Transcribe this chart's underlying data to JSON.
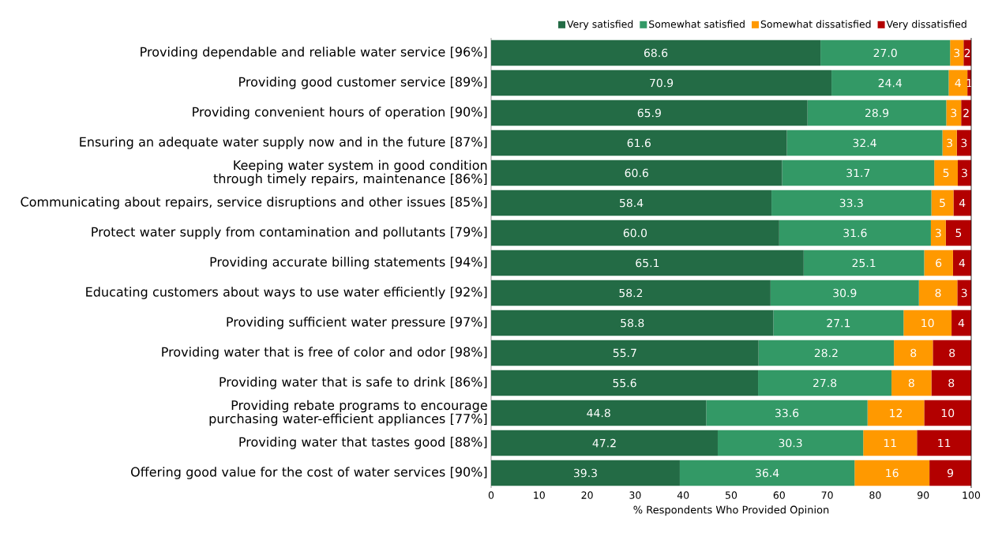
{
  "chart_data": {
    "type": "bar",
    "orientation": "horizontal",
    "stacked": true,
    "legend": "top right",
    "xlabel": "% Respondents Who Provided Opinion",
    "categories": [
      "Providing dependable and reliable water service [96%]",
      "Providing good customer service [89%]",
      "Providing convenient hours of operation [90%]",
      "Ensuring an adequate water supply now and in the future [87%]",
      "Keeping water system in good condition through timely repairs, maintenance [86%]",
      "Communicating about repairs, service disruptions and other issues [85%]",
      "Protect water supply from contamination and pollutants [79%]",
      "Providing accurate billing statements [94%]",
      "Educating customers about ways to use water efficiently [92%]",
      "Providing sufficient water pressure [97%]",
      "Providing water that is free of color and odor [98%]",
      "Providing water that is safe to drink [86%]",
      "Providing rebate programs to encourage purchasing water-efficient appliances [77%]",
      "Providing water that tastes good [88%]",
      "Offering good value for the cost of water services [90%]"
    ],
    "series": [
      {
        "name": "Very satisfied",
        "color": "#236b45",
        "values": [
          68.6,
          70.9,
          65.9,
          61.6,
          60.6,
          58.4,
          60.0,
          65.1,
          58.2,
          58.8,
          55.7,
          55.6,
          44.8,
          47.2,
          39.3
        ],
        "value_labels": [
          "68.6",
          "70.9",
          "65.9",
          "61.6",
          "60.6",
          "58.4",
          "60.0",
          "65.1",
          "58.2",
          "58.8",
          "55.7",
          "55.6",
          "44.8",
          "47.2",
          "39.3"
        ]
      },
      {
        "name": "Somewhat satisfied",
        "color": "#339966",
        "values": [
          27.0,
          24.4,
          28.9,
          32.4,
          31.7,
          33.3,
          31.6,
          25.1,
          30.9,
          27.1,
          28.2,
          27.8,
          33.6,
          30.3,
          36.4
        ],
        "value_labels": [
          "27.0",
          "24.4",
          "28.9",
          "32.4",
          "31.7",
          "33.3",
          "31.6",
          "25.1",
          "30.9",
          "27.1",
          "28.2",
          "27.8",
          "33.6",
          "30.3",
          "36.4"
        ]
      },
      {
        "name": "Somewhat dissatisfied",
        "color": "#ff9900",
        "values": [
          2.8,
          3.9,
          3.1,
          3.0,
          4.9,
          4.6,
          3.1,
          6.0,
          8.0,
          10.0,
          8.1,
          8.3,
          11.8,
          11.2,
          15.6
        ],
        "value_labels": [
          "3",
          "4",
          "3",
          "3",
          "5",
          "5",
          "3",
          "6",
          "8",
          "10",
          "8",
          "8",
          "12",
          "11",
          "16"
        ]
      },
      {
        "name": "Very dissatisfied",
        "color": "#b30000",
        "values": [
          1.6,
          0.8,
          2.1,
          3.0,
          2.8,
          3.7,
          5.3,
          3.8,
          2.9,
          4.1,
          8.0,
          8.3,
          9.8,
          11.3,
          8.7
        ],
        "value_labels": [
          "2",
          "1",
          "2",
          "3",
          "3",
          "4",
          "5",
          "4",
          "3",
          "4",
          "8",
          "8",
          "10",
          "11",
          "9"
        ]
      }
    ],
    "xlim": [
      0,
      100
    ],
    "xticks": [
      0,
      10,
      20,
      30,
      40,
      50,
      60,
      70,
      80,
      90,
      100
    ]
  }
}
